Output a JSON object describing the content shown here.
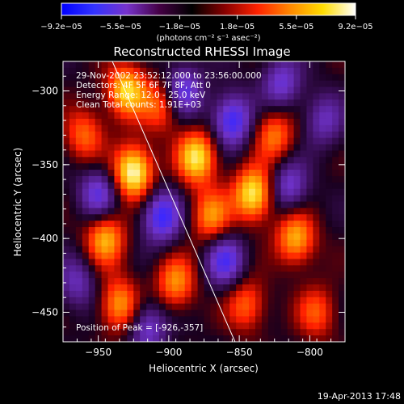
{
  "chart_data": {
    "type": "heatmap",
    "title": "Reconstructed RHESSI Image",
    "xlabel": "Heliocentric X (arcsec)",
    "ylabel": "Heliocentric Y (arcsec)",
    "xlim": [
      -975,
      -775
    ],
    "ylim": [
      -470,
      -280
    ],
    "xticks": [
      -950,
      -900,
      -850,
      -800
    ],
    "yticks": [
      -300,
      -350,
      -400,
      -450
    ],
    "xtick_labels": [
      "−950",
      "−900",
      "−850",
      "−800"
    ],
    "ytick_labels": [
      "−300",
      "−350",
      "−400",
      "−450"
    ],
    "colorbar": {
      "min": -9.2e-05,
      "max": 9.2e-05,
      "ticks": [
        -9.2e-05,
        -5.5e-05,
        -1.8e-05,
        1.8e-05,
        5.5e-05,
        9.2e-05
      ],
      "tick_labels": [
        "−9.2e−05",
        "−5.5e−05",
        "−1.8e−05",
        "1.8e−05",
        "5.5e−05",
        "9.2e−05"
      ],
      "units": "(photons cm⁻² s⁻¹ asec⁻²)",
      "colors": [
        "#0000ff",
        "#3333ff",
        "#7733cc",
        "#440044",
        "#000000",
        "#880000",
        "#ff2200",
        "#ff8800",
        "#ffdd00",
        "#ffffff"
      ]
    },
    "info": {
      "time": "29-Nov-2002 23:52:12.000 to 23:56:00.000",
      "detectors": "Detectors: 4F 5F 6F 7F 8F, Att 0",
      "energy": "Energy Range: 12.0 - 25.0 keV",
      "clean": "Clean     Total counts: 1.91E+03"
    },
    "peak_label": "Position of Peak = [-926,-357]",
    "peak": [
      -926,
      -357
    ],
    "limb_line": [
      [
        -940,
        -280
      ],
      [
        -853,
        -470
      ]
    ],
    "blobs": [
      {
        "x": -930,
        "y": -300,
        "v": 0.8
      },
      {
        "x": -925,
        "y": -355,
        "v": 1.0
      },
      {
        "x": -945,
        "y": -400,
        "v": 0.7
      },
      {
        "x": -905,
        "y": -310,
        "v": 0.5
      },
      {
        "x": -880,
        "y": -345,
        "v": 0.85
      },
      {
        "x": -870,
        "y": -385,
        "v": 0.6
      },
      {
        "x": -895,
        "y": -430,
        "v": 0.6
      },
      {
        "x": -935,
        "y": -445,
        "v": 0.65
      },
      {
        "x": -960,
        "y": -330,
        "v": 0.5
      },
      {
        "x": -840,
        "y": -370,
        "v": 0.9
      },
      {
        "x": -810,
        "y": -400,
        "v": 0.7
      },
      {
        "x": -825,
        "y": -330,
        "v": 0.55
      },
      {
        "x": -845,
        "y": -445,
        "v": 0.5
      },
      {
        "x": -795,
        "y": -450,
        "v": 0.45
      },
      {
        "x": -905,
        "y": -385,
        "v": -0.7
      },
      {
        "x": -890,
        "y": -300,
        "v": -0.6
      },
      {
        "x": -855,
        "y": -320,
        "v": -0.7
      },
      {
        "x": -820,
        "y": -295,
        "v": -0.5
      },
      {
        "x": -950,
        "y": -370,
        "v": -0.55
      },
      {
        "x": -860,
        "y": -415,
        "v": -0.6
      },
      {
        "x": -815,
        "y": -365,
        "v": -0.5
      },
      {
        "x": -965,
        "y": -430,
        "v": -0.4
      },
      {
        "x": -915,
        "y": -460,
        "v": -0.5
      },
      {
        "x": -790,
        "y": -320,
        "v": -0.4
      }
    ]
  },
  "footer": {
    "timestamp": "19-Apr-2013 17:48"
  }
}
